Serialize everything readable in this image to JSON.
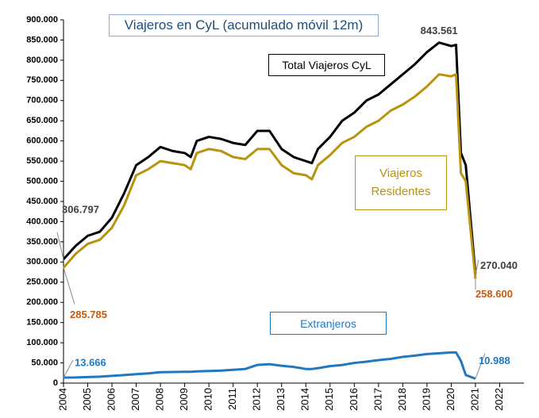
{
  "chart_data": {
    "type": "line",
    "title": "Viajeros en CyL (acumulado móvil 12m)",
    "x": [
      2004,
      2004.5,
      2005,
      2005.5,
      2006,
      2006.5,
      2007,
      2007.5,
      2008,
      2008.5,
      2009,
      2009.25,
      2009.5,
      2010,
      2010.5,
      2011,
      2011.5,
      2012,
      2012.5,
      2013,
      2013.5,
      2014,
      2014.25,
      2014.5,
      2015,
      2015.5,
      2016,
      2016.5,
      2017,
      2017.5,
      2018,
      2018.5,
      2019,
      2019.5,
      2020,
      2020.2,
      2020.4,
      2020.6,
      2021
    ],
    "series": [
      {
        "name": "Total Viajeros CyL",
        "color": "#000000",
        "label_color": "#404040",
        "values": [
          306797,
          340000,
          365000,
          375000,
          410000,
          470000,
          540000,
          560000,
          585000,
          575000,
          570000,
          560000,
          600000,
          610000,
          605000,
          595000,
          590000,
          625000,
          625000,
          580000,
          560000,
          550000,
          545000,
          580000,
          610000,
          650000,
          670000,
          700000,
          715000,
          740000,
          765000,
          790000,
          820000,
          843561,
          835000,
          838000,
          570000,
          540000,
          270040
        ],
        "value_labels": [
          "306.797",
          null,
          null,
          null,
          null,
          null,
          null,
          null,
          null,
          null,
          null,
          null,
          null,
          null,
          null,
          null,
          null,
          null,
          null,
          null,
          null,
          null,
          null,
          null,
          null,
          null,
          null,
          null,
          null,
          null,
          null,
          null,
          null,
          "843.561",
          null,
          null,
          null,
          null,
          "270.040"
        ]
      },
      {
        "name": "Viajeros Residentes",
        "color": "#b8930f",
        "label_color": "#c55a11",
        "values": [
          285785,
          320000,
          345000,
          355000,
          385000,
          440000,
          515000,
          530000,
          550000,
          545000,
          540000,
          530000,
          570000,
          580000,
          575000,
          560000,
          555000,
          580000,
          580000,
          540000,
          520000,
          515000,
          505000,
          540000,
          565000,
          595000,
          610000,
          635000,
          650000,
          675000,
          690000,
          710000,
          735000,
          765000,
          760000,
          765000,
          520000,
          500000,
          258600
        ],
        "value_labels": [
          "285.785",
          null,
          null,
          null,
          null,
          null,
          null,
          null,
          null,
          null,
          null,
          null,
          null,
          null,
          null,
          null,
          null,
          null,
          null,
          null,
          null,
          null,
          null,
          null,
          null,
          null,
          null,
          null,
          null,
          null,
          null,
          null,
          null,
          null,
          null,
          null,
          null,
          null,
          "258.600"
        ]
      },
      {
        "name": "Extranjeros",
        "color": "#1f78c1",
        "label_color": "#1f78c1",
        "values": [
          13666,
          14000,
          15000,
          16000,
          18000,
          20000,
          22000,
          24000,
          27000,
          27500,
          28000,
          28000,
          29000,
          30000,
          31000,
          33000,
          35000,
          45000,
          47000,
          43000,
          40000,
          35000,
          35000,
          37000,
          42000,
          45000,
          50000,
          53000,
          57000,
          60000,
          65000,
          68000,
          72000,
          74000,
          76000,
          76000,
          55000,
          20000,
          10988
        ],
        "value_labels": [
          "13.666",
          null,
          null,
          null,
          null,
          null,
          null,
          null,
          null,
          null,
          null,
          null,
          null,
          null,
          null,
          null,
          null,
          null,
          null,
          null,
          null,
          null,
          null,
          null,
          null,
          null,
          null,
          null,
          null,
          null,
          null,
          null,
          null,
          null,
          null,
          null,
          null,
          null,
          "10.988"
        ]
      }
    ],
    "xlim": [
      2004,
      2023
    ],
    "xticks": [
      2004,
      2005,
      2006,
      2007,
      2008,
      2009,
      2010,
      2011,
      2012,
      2013,
      2014,
      2015,
      2016,
      2017,
      2018,
      2019,
      2020,
      2021,
      2022
    ],
    "ylim": [
      0,
      900000
    ],
    "yticks": [
      {
        "value": 0,
        "label": "0"
      },
      {
        "value": 50000,
        "label": "50.000"
      },
      {
        "value": 100000,
        "label": "100.000"
      },
      {
        "value": 150000,
        "label": "150.000"
      },
      {
        "value": 200000,
        "label": "200.000"
      },
      {
        "value": 250000,
        "label": "250.000"
      },
      {
        "value": 300000,
        "label": "300.000"
      },
      {
        "value": 350000,
        "label": "350.000"
      },
      {
        "value": 400000,
        "label": "400.000"
      },
      {
        "value": 450000,
        "label": "450.000"
      },
      {
        "value": 500000,
        "label": "500.000"
      },
      {
        "value": 550000,
        "label": "550.000"
      },
      {
        "value": 600000,
        "label": "600.000"
      },
      {
        "value": 650000,
        "label": "650.000"
      },
      {
        "value": 700000,
        "label": "700.000"
      },
      {
        "value": 750000,
        "label": "750.000"
      },
      {
        "value": 800000,
        "label": "800.000"
      },
      {
        "value": 850000,
        "label": "850.000"
      },
      {
        "value": 900000,
        "label": "900.000"
      }
    ],
    "grid": false
  }
}
